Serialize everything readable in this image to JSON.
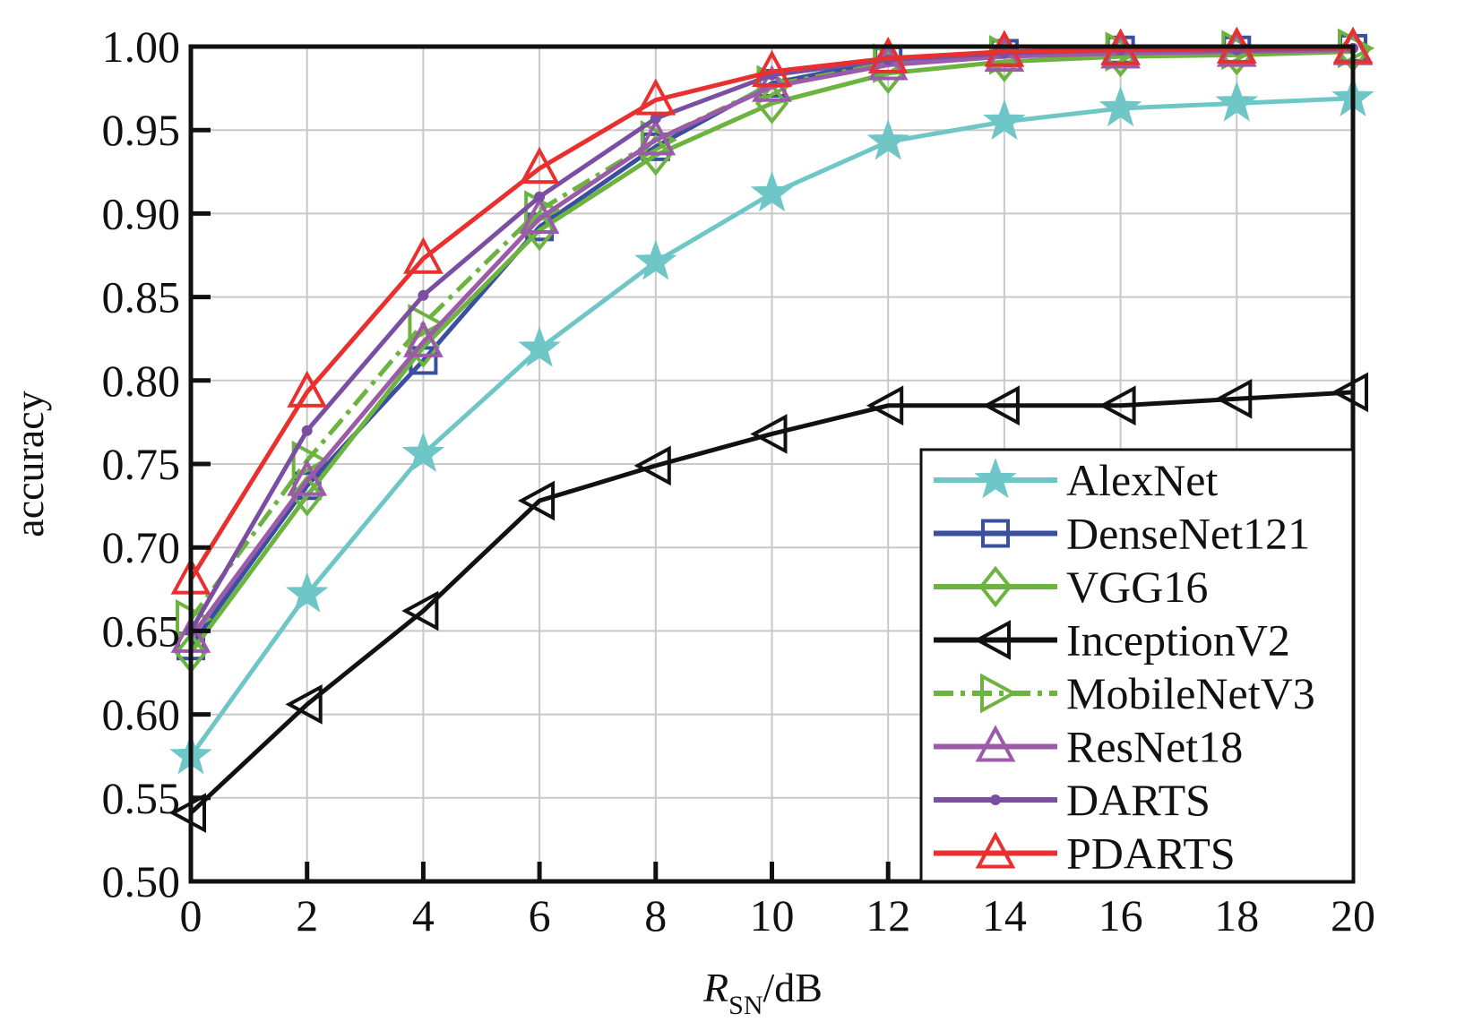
{
  "chart_data": {
    "type": "line",
    "xlabel": "R",
    "xlabel_sub": "SN",
    "xlabel_unit": "/dB",
    "ylabel": "accuracy",
    "xlim": [
      0,
      20
    ],
    "ylim": [
      0.5,
      1.0
    ],
    "x": [
      0,
      2,
      4,
      6,
      8,
      10,
      12,
      14,
      16,
      18,
      20
    ],
    "x_tick_labels": [
      "0",
      "2",
      "4",
      "6",
      "8",
      "10",
      "12",
      "14",
      "16",
      "18",
      "20"
    ],
    "y_ticks": [
      0.5,
      0.55,
      0.6,
      0.65,
      0.7,
      0.75,
      0.8,
      0.85,
      0.9,
      0.95,
      1.0
    ],
    "y_tick_labels": [
      "0.50",
      "0.55",
      "0.60",
      "0.65",
      "0.70",
      "0.75",
      "0.80",
      "0.85",
      "0.90",
      "0.95",
      "1.00"
    ],
    "grid": true,
    "legend_position": "bottom-right",
    "series": [
      {
        "name": "AlexNet",
        "color": "#6ec7c6",
        "marker": "star",
        "dash": "solid",
        "values": [
          0.575,
          0.672,
          0.756,
          0.819,
          0.871,
          0.912,
          0.943,
          0.955,
          0.963,
          0.966,
          0.969
        ]
      },
      {
        "name": "DenseNet121",
        "color": "#3a4fa0",
        "marker": "square",
        "dash": "solid",
        "values": [
          0.641,
          0.737,
          0.812,
          0.892,
          0.94,
          0.978,
          0.992,
          0.996,
          0.998,
          0.998,
          0.999
        ]
      },
      {
        "name": "VGG16",
        "color": "#6cb33f",
        "marker": "diamond",
        "dash": "solid",
        "values": [
          0.637,
          0.731,
          0.82,
          0.89,
          0.935,
          0.966,
          0.984,
          0.991,
          0.994,
          0.995,
          0.997
        ]
      },
      {
        "name": "InceptionV2",
        "color": "#111111",
        "marker": "triangle-left",
        "dash": "solid",
        "values": [
          0.541,
          0.606,
          0.662,
          0.728,
          0.749,
          0.768,
          0.785,
          0.785,
          0.785,
          0.789,
          0.793
        ]
      },
      {
        "name": "MobileNetV3",
        "color": "#6cb33f",
        "marker": "triangle-right",
        "dash": "dashdot",
        "values": [
          0.657,
          0.752,
          0.834,
          0.902,
          0.944,
          0.977,
          0.99,
          0.995,
          0.997,
          0.998,
          0.999
        ]
      },
      {
        "name": "ResNet18",
        "color": "#9b5ba8",
        "marker": "triangle-up",
        "dash": "solid",
        "values": [
          0.646,
          0.74,
          0.823,
          0.897,
          0.944,
          0.976,
          0.989,
          0.994,
          0.996,
          0.997,
          0.998
        ]
      },
      {
        "name": "DARTS",
        "color": "#7a4fa3",
        "marker": "dot",
        "dash": "solid",
        "values": [
          0.65,
          0.77,
          0.851,
          0.91,
          0.957,
          0.983,
          0.992,
          0.996,
          0.998,
          0.998,
          0.999
        ]
      },
      {
        "name": "PDARTS",
        "color": "#e8302e",
        "marker": "triangle-up",
        "dash": "solid",
        "values": [
          0.681,
          0.793,
          0.873,
          0.927,
          0.968,
          0.985,
          0.993,
          0.997,
          0.998,
          0.999,
          0.999
        ]
      }
    ]
  }
}
